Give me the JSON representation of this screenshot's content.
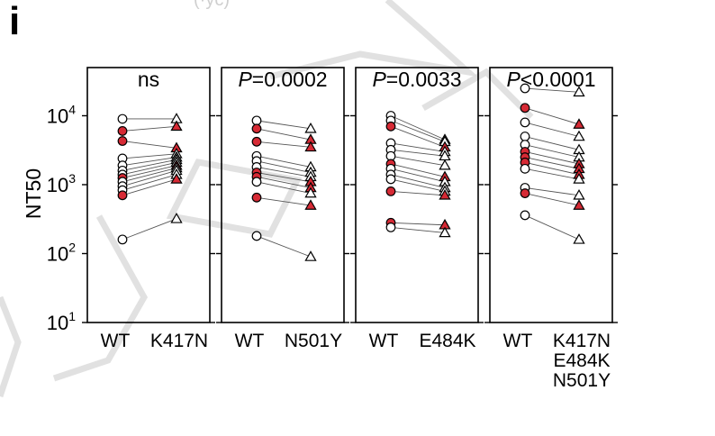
{
  "panel_letter": "i",
  "header_fragment": "(·yc)",
  "colors": {
    "accent_red": "#d62a35",
    "open_fill": "#ffffff",
    "stroke": "#000000"
  },
  "chart_data": {
    "type": "scatter",
    "ylabel": "NT50",
    "yscale": "log",
    "ylim": [
      10,
      50000
    ],
    "yticks": [
      10,
      100,
      1000,
      10000
    ],
    "ytick_labels": [
      {
        "base": "10",
        "exp": "1"
      },
      {
        "base": "10",
        "exp": "2"
      },
      {
        "base": "10",
        "exp": "3"
      },
      {
        "base": "10",
        "exp": "4"
      }
    ],
    "panels": [
      {
        "stat_prefix": "",
        "stat_value": "ns",
        "x_labels": [
          "WT",
          "K417N"
        ],
        "pairs": [
          [
            9000,
            9000,
            false
          ],
          [
            6000,
            7000,
            true
          ],
          [
            4300,
            3400,
            true
          ],
          [
            2400,
            2800,
            false
          ],
          [
            1900,
            2500,
            false
          ],
          [
            1600,
            2300,
            false
          ],
          [
            1400,
            2100,
            false
          ],
          [
            1250,
            1900,
            true
          ],
          [
            1100,
            1750,
            false
          ],
          [
            950,
            1600,
            false
          ],
          [
            830,
            1400,
            false
          ],
          [
            700,
            1200,
            true
          ],
          [
            160,
            320,
            false
          ]
        ]
      },
      {
        "stat_prefix": "P",
        "stat_value": "=0.0002",
        "x_labels": [
          "WT",
          "N501Y"
        ],
        "pairs": [
          [
            8500,
            6500,
            false
          ],
          [
            6500,
            4500,
            true
          ],
          [
            4200,
            3500,
            true
          ],
          [
            2600,
            1800,
            false
          ],
          [
            2200,
            1500,
            false
          ],
          [
            1800,
            1300,
            false
          ],
          [
            1500,
            1100,
            true
          ],
          [
            1300,
            900,
            true
          ],
          [
            1100,
            750,
            false
          ],
          [
            650,
            500,
            true
          ],
          [
            180,
            90,
            false
          ]
        ]
      },
      {
        "stat_prefix": "P",
        "stat_value": "=0.0033",
        "x_labels": [
          "WT",
          "E484K"
        ],
        "pairs": [
          [
            10000,
            4500,
            false
          ],
          [
            8500,
            4200,
            false
          ],
          [
            7000,
            3500,
            true
          ],
          [
            4000,
            3000,
            false
          ],
          [
            3200,
            2600,
            false
          ],
          [
            2600,
            1900,
            false
          ],
          [
            2000,
            1300,
            true
          ],
          [
            1700,
            1100,
            false
          ],
          [
            1400,
            900,
            false
          ],
          [
            1200,
            800,
            false
          ],
          [
            800,
            700,
            true
          ],
          [
            280,
            260,
            true
          ],
          [
            240,
            200,
            false
          ]
        ]
      },
      {
        "stat_prefix": "P",
        "stat_value": "<0.0001",
        "x_labels": [
          "WT",
          "K417N\nE484K\nN501Y"
        ],
        "pairs": [
          [
            25000,
            22000,
            false
          ],
          [
            13000,
            7500,
            true
          ],
          [
            8000,
            5000,
            false
          ],
          [
            5000,
            3200,
            false
          ],
          [
            3800,
            2500,
            false
          ],
          [
            3000,
            2000,
            true
          ],
          [
            2500,
            1700,
            true
          ],
          [
            2100,
            1400,
            true
          ],
          [
            1700,
            1200,
            false
          ],
          [
            900,
            700,
            false
          ],
          [
            750,
            500,
            true
          ],
          [
            360,
            160,
            false
          ]
        ]
      }
    ]
  }
}
